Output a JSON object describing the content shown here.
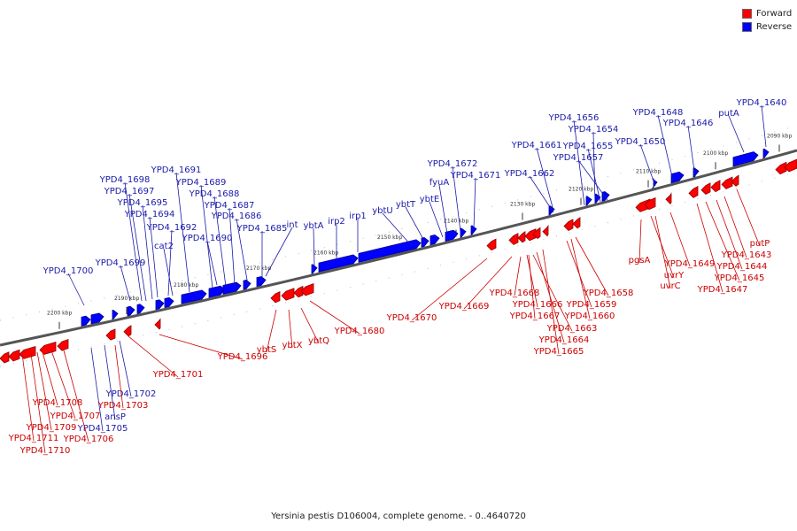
{
  "caption": "Yersinia pestis D106004, complete genome. - 0..4640720",
  "legend": [
    {
      "label": "Forward",
      "color": "#ff0000"
    },
    {
      "label": "Reverse",
      "color": "#0000ff"
    }
  ],
  "colors": {
    "forward": "#ff0000",
    "reverse": "#0000ff",
    "forward_text": "#cc0000",
    "reverse_text": "#1a1aaa"
  },
  "ticks": [
    "2090 kbp",
    "2100 kbp",
    "2110 kbp",
    "2120 kbp",
    "2130 kbp",
    "2140 kbp",
    "2150 kbp",
    "2160 kbp",
    "2170 kbp",
    "2180 kbp",
    "2190 kbp",
    "2200 kbp"
  ],
  "forward_labels": [
    "YPD4_1701",
    "YPD4_1696",
    "ybtS",
    "ybtX",
    "ybtQ",
    "YPD4_1680",
    "YPD4_1670",
    "YPD4_1669",
    "YPD4_1668",
    "YPD4_1666",
    "YPD4_1667",
    "YPD4_1663",
    "YPD4_1664",
    "YPD4_1665",
    "YPD4_1659",
    "YPD4_1660",
    "YPD4_1658",
    "pgsA",
    "uvrY",
    "uvrC",
    "YPD4_1649",
    "YPD4_1647",
    "YPD4_1645",
    "YPD4_1644",
    "YPD4_1643",
    "putP",
    "YPD4_1703",
    "YPD4_1708",
    "YPD4_1707",
    "YPD4_1709",
    "YPD4_1706",
    "YPD4_1711",
    "YPD4_1710"
  ],
  "reverse_labels": [
    "YPD4_1700",
    "YPD4_1699",
    "YPD4_1698",
    "YPD4_1697",
    "YPD4_1695",
    "YPD4_1694",
    "YPD4_1692",
    "cat2",
    "YPD4_1691",
    "YPD4_1689",
    "YPD4_1688",
    "YPD4_1687",
    "YPD4_1686",
    "YPD4_1690",
    "YPD4_1685",
    "int",
    "ybtA",
    "irp2",
    "irp1",
    "ybtU",
    "ybtT",
    "ybtE",
    "fyuA",
    "YPD4_1672",
    "YPD4_1671",
    "YPD4_1662",
    "YPD4_1661",
    "YPD4_1656",
    "YPD4_1654",
    "YPD4_1655",
    "YPD4_1657",
    "YPD4_1650",
    "YPD4_1648",
    "YPD4_1646",
    "putA",
    "YPD4_1640",
    "YPD4_1702",
    "ansP",
    "YPD4_1705"
  ]
}
